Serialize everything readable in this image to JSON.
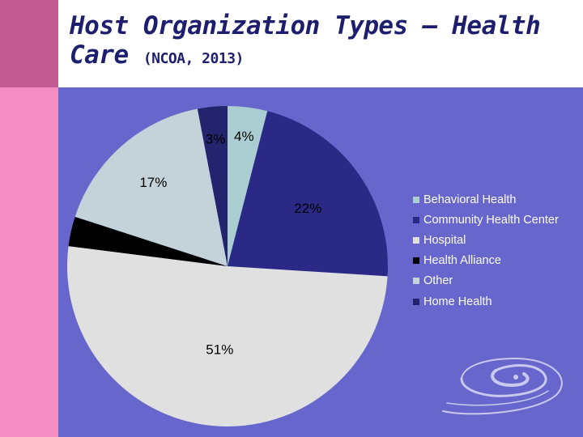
{
  "slide": {
    "title": "Host Organization Types – Health Care",
    "title_line1": "Host Organization Types – Health",
    "title_line2": "Care",
    "source": "(NCOA, 2013)"
  },
  "colors": {
    "left_band_top": "#c15b91",
    "left_band": "#f48dc4",
    "chart_background": "#6666cc",
    "title_text": "#1e1e6e",
    "legend_text": "#ffffff"
  },
  "chart_data": {
    "type": "pie",
    "title": "",
    "start_angle_deg": 0,
    "direction": "clockwise",
    "legend_position": "right",
    "slices": [
      {
        "label": "Behavioral Health",
        "value": 4,
        "data_label": "4%",
        "color": "#a9cdd0"
      },
      {
        "label": "Community Health Center",
        "value": 22,
        "data_label": "22%",
        "color": "#2a2a86"
      },
      {
        "label": "Hospital",
        "value": 51,
        "data_label": "51%",
        "color": "#e0e0e0"
      },
      {
        "label": "Health Alliance",
        "value": 3,
        "data_label": "",
        "color": "#000000"
      },
      {
        "label": "Other",
        "value": 17,
        "data_label": "17%",
        "color": "#c3d3d9"
      },
      {
        "label": "Home Health",
        "value": 3,
        "data_label": "3%",
        "color": "#24246e"
      }
    ]
  },
  "logo": {
    "icon": "swirl-logo-icon"
  }
}
